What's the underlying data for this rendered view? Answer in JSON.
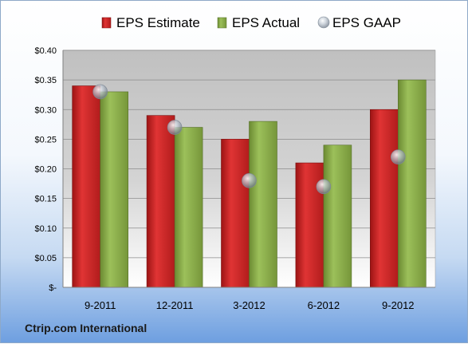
{
  "chart_data": {
    "type": "bar",
    "title": "",
    "xlabel": "",
    "ylabel": "",
    "categories": [
      "9-2011",
      "12-2011",
      "3-2012",
      "6-2012",
      "9-2012"
    ],
    "series": [
      {
        "name": "EPS Estimate",
        "kind": "bar",
        "color": "#d42a2a",
        "values": [
          0.34,
          0.29,
          0.25,
          0.21,
          0.3
        ]
      },
      {
        "name": "EPS Actual",
        "kind": "bar",
        "color": "#8aac4c",
        "values": [
          0.33,
          0.27,
          0.28,
          0.24,
          0.35
        ]
      },
      {
        "name": "EPS GAAP",
        "kind": "marker",
        "color": "#b8c4d2",
        "values": [
          0.33,
          0.27,
          0.18,
          0.17,
          0.22
        ]
      }
    ],
    "ylim": [
      0,
      0.4
    ],
    "yticks": [
      "$-",
      "$0.05",
      "$0.10",
      "$0.15",
      "$0.20",
      "$0.25",
      "$0.30",
      "$0.35",
      "$0.40"
    ],
    "grid": true,
    "legend_position": "top"
  },
  "footer": {
    "company": "Ctrip.com International"
  }
}
